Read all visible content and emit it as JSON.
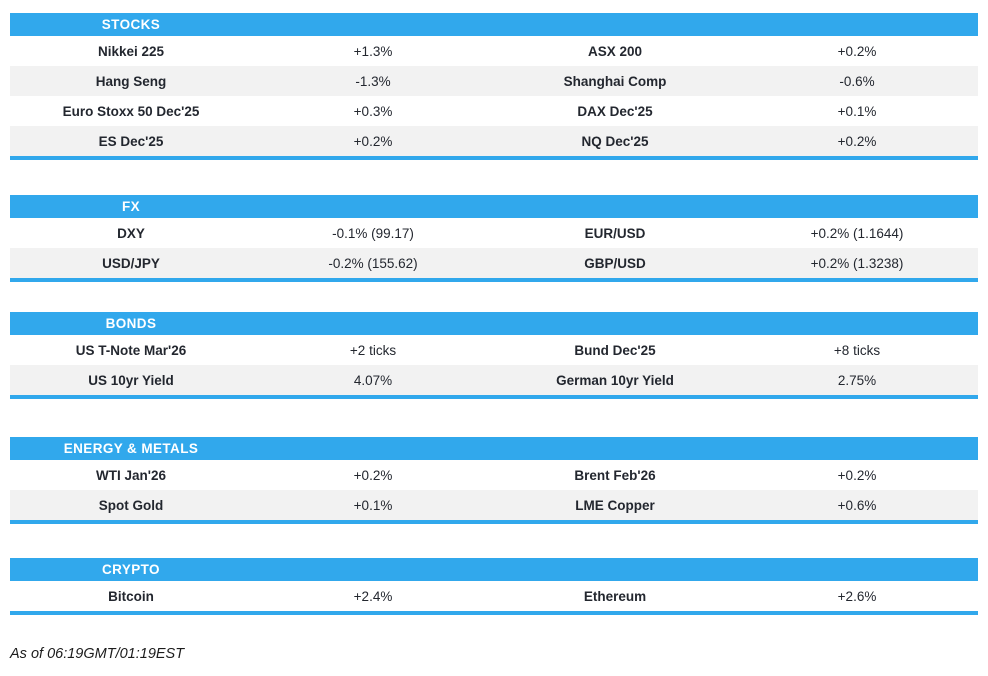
{
  "colors": {
    "accent": "#31a8ec",
    "row_alt": "#f2f2f2",
    "text": "#23272f",
    "header_text": "#ffffff"
  },
  "sections": [
    {
      "id": "stocks",
      "title": "STOCKS",
      "rows": [
        [
          "Nikkei 225",
          "+1.3%",
          "ASX 200",
          "+0.2%"
        ],
        [
          "Hang Seng",
          "-1.3%",
          "Shanghai Comp",
          "-0.6%"
        ],
        [
          "Euro Stoxx 50 Dec'25",
          "+0.3%",
          "DAX Dec'25",
          "+0.1%"
        ],
        [
          "ES Dec'25",
          "+0.2%",
          "NQ Dec'25",
          "+0.2%"
        ]
      ]
    },
    {
      "id": "fx",
      "title": "FX",
      "rows": [
        [
          "DXY",
          "-0.1% (99.17)",
          "EUR/USD",
          "+0.2% (1.1644)"
        ],
        [
          "USD/JPY",
          "-0.2% (155.62)",
          "GBP/USD",
          "+0.2% (1.3238)"
        ]
      ]
    },
    {
      "id": "bonds",
      "title": "BONDS",
      "rows": [
        [
          "US T-Note Mar'26",
          "+2 ticks",
          "Bund Dec'25",
          "+8 ticks"
        ],
        [
          "US 10yr Yield",
          "4.07%",
          "German 10yr Yield",
          "2.75%"
        ]
      ]
    },
    {
      "id": "energy-metals",
      "title": "ENERGY & METALS",
      "rows": [
        [
          "WTI Jan'26",
          "+0.2%",
          "Brent Feb'26",
          "+0.2%"
        ],
        [
          "Spot Gold",
          "+0.1%",
          "LME Copper",
          "+0.6%"
        ]
      ]
    },
    {
      "id": "crypto",
      "title": "CRYPTO",
      "rows": [
        [
          "Bitcoin",
          "+2.4%",
          "Ethereum",
          "+2.6%"
        ]
      ]
    }
  ],
  "footer": {
    "as_of": "As of 06:19GMT/01:19EST"
  }
}
